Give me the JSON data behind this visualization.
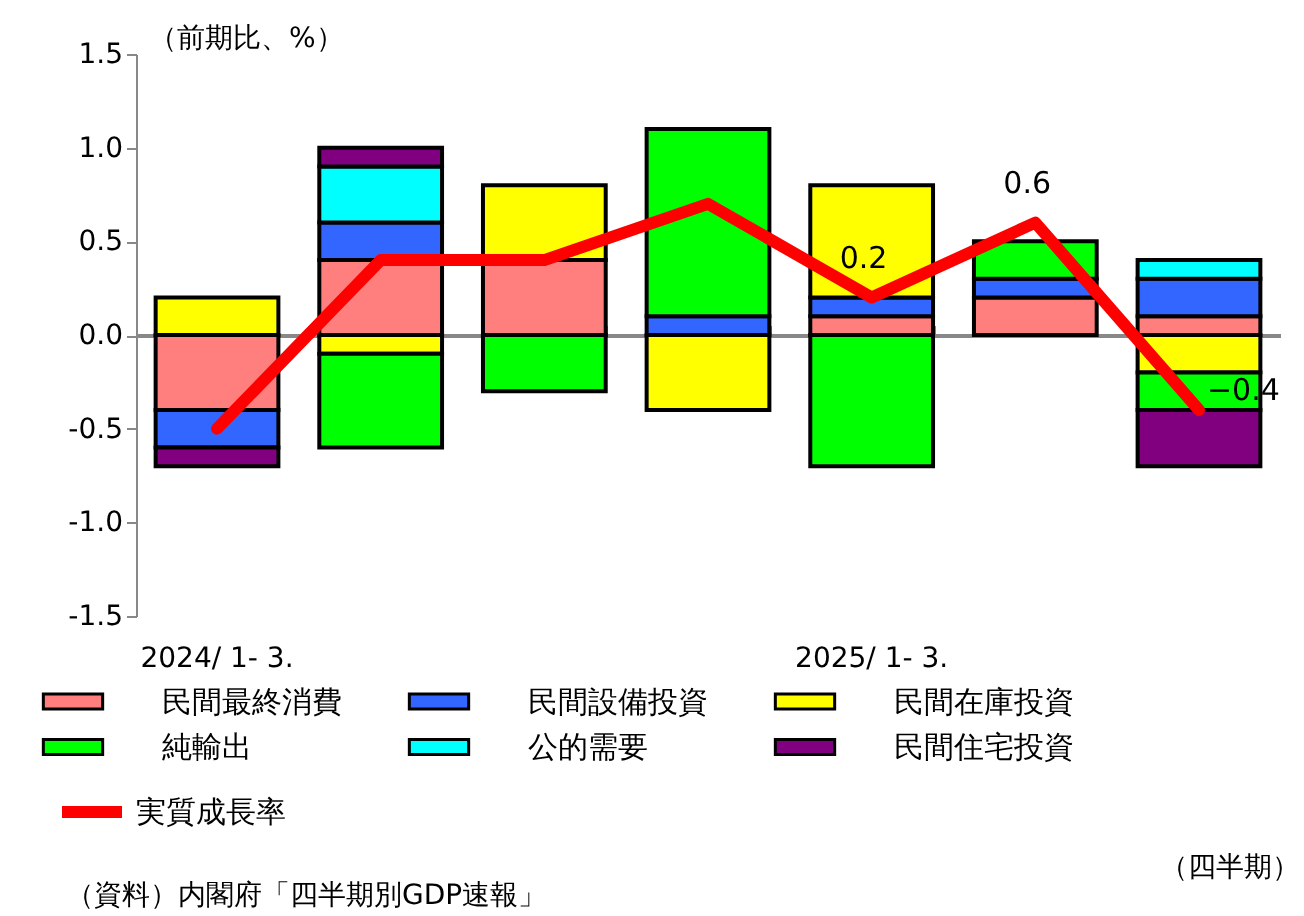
{
  "chart_data": {
    "type": "bar",
    "stacked": true,
    "ylabel": "（前期比、%）",
    "categories": [
      "2024/ 1- 3.",
      null,
      null,
      null,
      "2025/ 1- 3.",
      null,
      null
    ],
    "ylim": [
      -1.5,
      1.5
    ],
    "yticks": [
      {
        "value": -1.5,
        "label": "-1.5"
      },
      {
        "value": -1,
        "label": "-1.0"
      },
      {
        "value": -0.5,
        "label": "-0.5"
      },
      {
        "value": 0,
        "label": "0.0"
      },
      {
        "value": 0.5,
        "label": "0.5"
      },
      {
        "value": 1,
        "label": "1.0"
      },
      {
        "value": 1.5,
        "label": "1.5"
      }
    ],
    "legend": "bottom",
    "series": [
      {
        "name": "民間最終消費",
        "color": "#ff7f7f",
        "values": [
          -0.4,
          0.4,
          0.4,
          0,
          0.1,
          0.2,
          0.1
        ]
      },
      {
        "name": "民間設備投資",
        "color": "#3366ff",
        "values": [
          -0.2,
          0.2,
          0,
          0.1,
          0.1,
          0.1,
          0.2
        ]
      },
      {
        "name": "民間在庫投資",
        "color": "#ffff00",
        "values": [
          0.2,
          -0.1,
          0.4,
          -0.4,
          0.6,
          0,
          -0.2
        ]
      },
      {
        "name": "純輸出",
        "color": "#00ff00",
        "values": [
          0,
          -0.5,
          -0.3,
          1.0,
          -0.7,
          0.2,
          -0.2
        ]
      },
      {
        "name": "公的需要",
        "color": "#00ffff",
        "values": [
          0,
          0.3,
          0,
          0,
          0,
          0,
          0.1
        ]
      },
      {
        "name": "民間住宅投資",
        "color": "#800080",
        "values": [
          -0.1,
          0.1,
          0,
          0,
          0,
          0,
          -0.3
        ]
      },
      {
        "name": "実質成長率",
        "type": "line",
        "color": "#ff0000",
        "line_style": "solid",
        "marker": "none",
        "values": [
          -0.5,
          0.4,
          0.4,
          0.7,
          0.2,
          0.6,
          -0.4
        ],
        "value_labels": [
          null,
          null,
          null,
          null,
          "0.2",
          "0.6",
          "−0.4"
        ]
      }
    ],
    "annotations": [
      "（四半期）",
      "（資料）内閣府「四半期別GDP速報」"
    ]
  }
}
